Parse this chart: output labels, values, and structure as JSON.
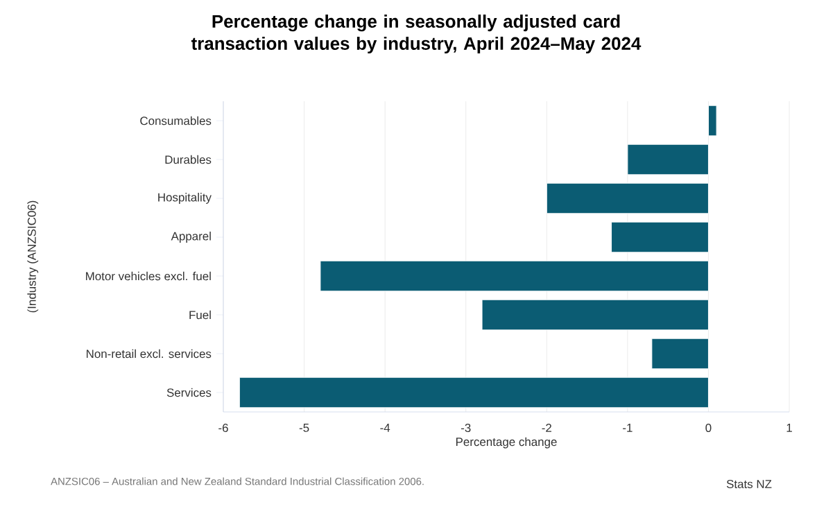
{
  "chart_data": {
    "type": "bar",
    "orientation": "horizontal",
    "title": "Percentage change in seasonally adjusted card transaction values by industry, April 2024–May 2024",
    "categories": [
      "Consumables",
      "Durables",
      "Hospitality",
      "Apparel",
      "Motor vehicles excl. fuel",
      "Fuel",
      "Non-retail excl. services",
      "Services"
    ],
    "values": [
      0.1,
      -1.0,
      -2.0,
      -1.2,
      -4.8,
      -2.8,
      -0.7,
      -5.8
    ],
    "color": "#0b5c73",
    "xlim": [
      -6,
      1
    ],
    "xticks": [
      -6,
      -5,
      -4,
      -3,
      -2,
      -1,
      0,
      1
    ],
    "xlabel": "Percentage change",
    "ylabel": "(Industry (ANZSIC06)",
    "grid": "x",
    "annotations": [
      "ANZSIC06 – Australian and New Zealand Standard Industrial Classification 2006.",
      "Stats NZ"
    ]
  }
}
